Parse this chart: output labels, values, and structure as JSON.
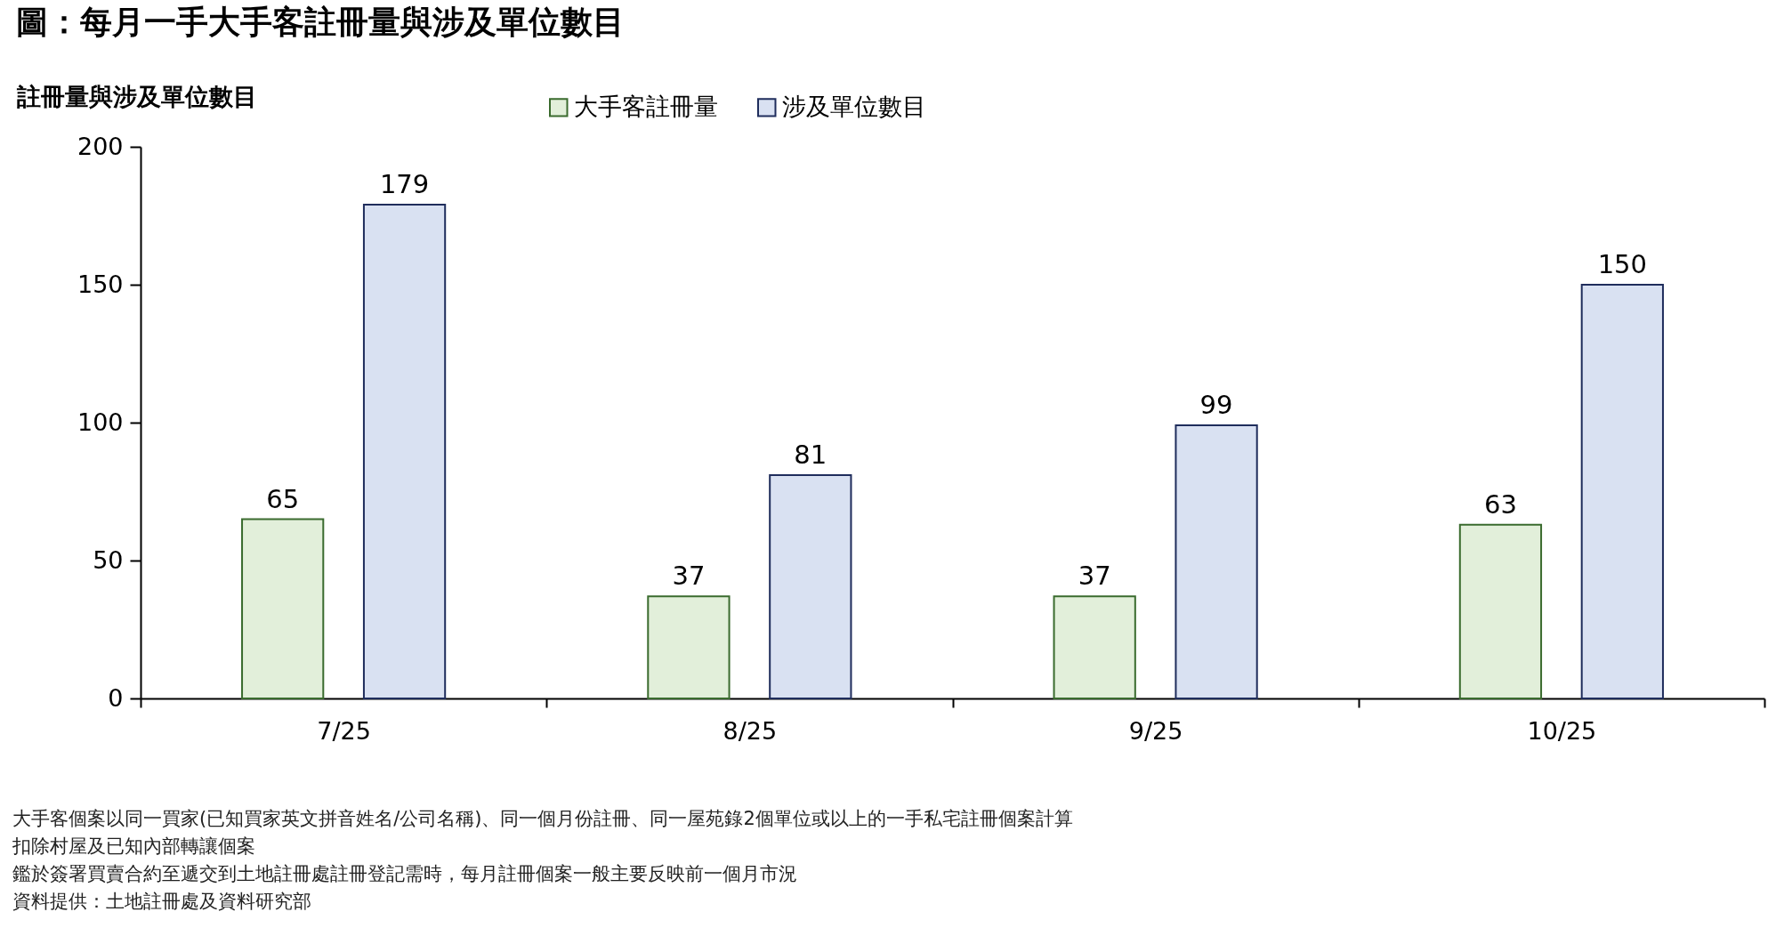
{
  "chart_data": {
    "type": "bar",
    "title": "圖：每月一手大手客註冊量與涉及單位數目",
    "ylabel": "註冊量與涉及單位數目",
    "categories": [
      "7/25",
      "8/25",
      "9/25",
      "10/25"
    ],
    "series": [
      {
        "name": "大手客註冊量",
        "color": "#e2efda",
        "values": [
          65,
          37,
          37,
          63
        ]
      },
      {
        "name": "涉及單位數目",
        "color": "#d9e1f2",
        "values": [
          179,
          81,
          99,
          150
        ]
      }
    ],
    "ylim": [
      0,
      200
    ],
    "yticks": [
      0,
      50,
      100,
      150,
      200
    ],
    "grid": false,
    "legend": "top",
    "data_labels": true,
    "annotations": [
      "大手客個案以同一買家(已知買家英文拼音姓名/公司名稱)、同一個月份註冊、同一屋苑錄2個單位或以上的一手私宅註冊個案計算",
      "扣除村屋及已知內部轉讓個案",
      "鑑於簽署買賣合約至遞交到土地註冊處註冊登記需時，每月註冊個案一般主要反映前一個月市況",
      "資料提供：土地註冊處及資料研究部"
    ]
  }
}
